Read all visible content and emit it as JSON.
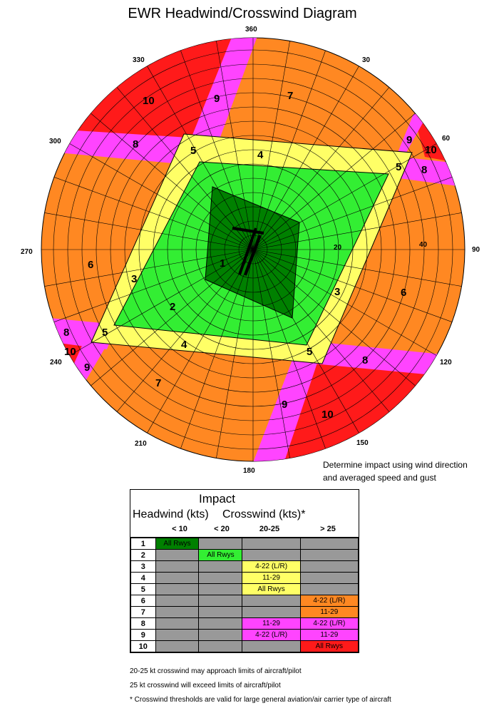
{
  "title": "EWR Headwind/Crosswind Diagram",
  "compass_labels": [
    "360",
    "30",
    "60",
    "90",
    "120",
    "150",
    "180",
    "210",
    "240",
    "270",
    "300",
    "330"
  ],
  "ring_labels": [
    "20",
    "40"
  ],
  "zones": [
    "1",
    "2",
    "3",
    "4",
    "5",
    "6",
    "7",
    "8",
    "9",
    "10"
  ],
  "note": [
    "Determine impact using wind direction",
    "and averaged speed and gust"
  ],
  "table": {
    "title": "Impact",
    "headwind_label": "Headwind (kts)",
    "crosswind_label": "Crosswind (kts)*",
    "columns": [
      "< 10",
      "< 20",
      "20-25",
      "> 25"
    ],
    "rows": [
      {
        "num": "1",
        "cells": [
          "All Rwys",
          "",
          "",
          ""
        ]
      },
      {
        "num": "2",
        "cells": [
          "",
          "All Rwys",
          "",
          ""
        ]
      },
      {
        "num": "3",
        "cells": [
          "",
          "",
          "4-22 (L/R)",
          ""
        ]
      },
      {
        "num": "4",
        "cells": [
          "",
          "",
          "11-29",
          ""
        ]
      },
      {
        "num": "5",
        "cells": [
          "",
          "",
          "All Rwys",
          ""
        ]
      },
      {
        "num": "6",
        "cells": [
          "",
          "",
          "",
          "4-22 (L/R)"
        ]
      },
      {
        "num": "7",
        "cells": [
          "",
          "",
          "",
          "11-29"
        ]
      },
      {
        "num": "8",
        "cells": [
          "",
          "",
          "11-29",
          "4-22 (L/R)"
        ]
      },
      {
        "num": "9",
        "cells": [
          "",
          "",
          "4-22 (L/R)",
          "11-29"
        ]
      },
      {
        "num": "10",
        "cells": [
          "",
          "",
          "",
          "All Rwys"
        ]
      }
    ]
  },
  "footnotes": [
    "20-25 kt crosswind may approach limits of aircraft/pilot",
    "25 kt crosswind will exceed limits of aircraft/pilot",
    "* Crosswind thresholds are valid for large general aviation/air carrier type of aircraft"
  ],
  "colors": {
    "z1": "#008000",
    "z2": "#33ee33",
    "z3": "#ffff66",
    "z6": "#ff8822",
    "z8": "#ff44ff",
    "z10": "#ff1a1a",
    "gray": "#999999"
  }
}
